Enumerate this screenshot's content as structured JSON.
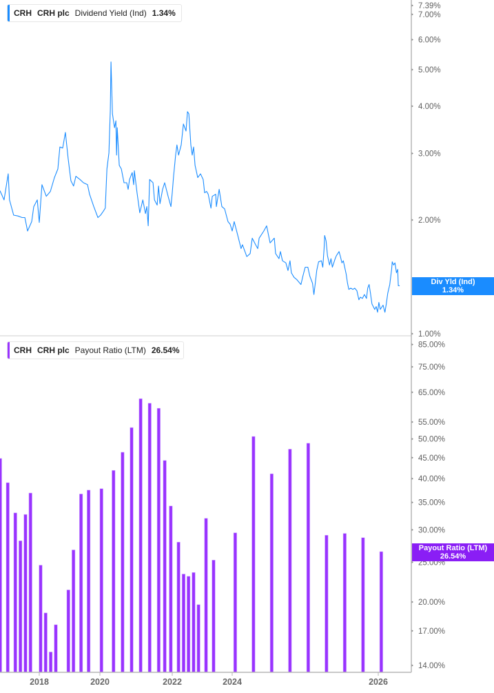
{
  "colors": {
    "dividend_yield": "#1a8cff",
    "payout_ratio": "#9933ff",
    "axis": "#b5b5b5"
  },
  "top_legend": {
    "ticker": "CRH",
    "company": "CRH plc",
    "metric": "Dividend Yield (Ind)",
    "value": "1.34%"
  },
  "bottom_legend": {
    "ticker": "CRH",
    "company": "CRH plc",
    "metric": "Payout Ratio (LTM)",
    "value": "26.54%"
  },
  "top_tag": {
    "label": "Div Yld (Ind)",
    "value": "1.34%"
  },
  "bottom_tag": {
    "label": "Payout Ratio (LTM)",
    "value": "26.54%"
  },
  "chart_data": [
    {
      "type": "line",
      "series_name": "Dividend Yield (Ind)",
      "y_scale": "log",
      "ylim": [
        1.0,
        7.39
      ],
      "y_ticks": [
        "7.39%",
        "7.00%",
        "6.00%",
        "5.00%",
        "4.00%",
        "3.00%",
        "2.00%",
        "1.00%"
      ],
      "y_tick_values": [
        7.39,
        7,
        6,
        5,
        4,
        3,
        2,
        1
      ],
      "x_ticks": [
        "2018",
        "2020",
        "2022",
        "2024",
        "2026"
      ],
      "grid": false,
      "points": [
        [
          "2016-09-15",
          2.39
        ],
        [
          "2016-11-03",
          2.26
        ],
        [
          "2016-12-22",
          2.65
        ],
        [
          "2017-01-08",
          2.26
        ],
        [
          "2017-02-27",
          2.06
        ],
        [
          "2017-04-17",
          2.05
        ],
        [
          "2017-06-07",
          2.03
        ],
        [
          "2017-07-10",
          2.03
        ],
        [
          "2017-08-12",
          1.87
        ],
        [
          "2017-10-01",
          1.98
        ],
        [
          "2017-10-26",
          2.17
        ],
        [
          "2017-12-07",
          2.26
        ],
        [
          "2018-01-01",
          1.97
        ],
        [
          "2018-02-03",
          2.48
        ],
        [
          "2018-03-25",
          2.31
        ],
        [
          "2018-05-13",
          2.38
        ],
        [
          "2018-07-01",
          2.59
        ],
        [
          "2018-08-12",
          2.73
        ],
        [
          "2018-09-06",
          3.12
        ],
        [
          "2018-10-09",
          3.1
        ],
        [
          "2018-11-11",
          3.41
        ],
        [
          "2018-12-14",
          2.91
        ],
        [
          "2019-01-17",
          2.54
        ],
        [
          "2019-02-19",
          2.46
        ],
        [
          "2019-03-16",
          2.61
        ],
        [
          "2019-05-05",
          2.56
        ],
        [
          "2019-06-16",
          2.51
        ],
        [
          "2019-08-04",
          2.48
        ],
        [
          "2019-08-29",
          2.34
        ],
        [
          "2019-10-18",
          2.17
        ],
        [
          "2019-12-07",
          2.03
        ],
        [
          "2020-01-08",
          2.06
        ],
        [
          "2020-02-05",
          2.11
        ],
        [
          "2020-02-25",
          2.15
        ],
        [
          "2020-03-11",
          2.73
        ],
        [
          "2020-04-01",
          3.01
        ],
        [
          "2020-04-15",
          3.9
        ],
        [
          "2020-04-22",
          5.24
        ],
        [
          "2020-05-06",
          3.82
        ],
        [
          "2020-05-27",
          3.51
        ],
        [
          "2020-06-10",
          3.66
        ],
        [
          "2020-06-17",
          2.97
        ],
        [
          "2020-06-24",
          3.51
        ],
        [
          "2020-07-14",
          2.79
        ],
        [
          "2020-08-04",
          2.73
        ],
        [
          "2020-09-01",
          2.51
        ],
        [
          "2020-09-28",
          2.51
        ],
        [
          "2020-10-12",
          2.41
        ],
        [
          "2020-10-26",
          2.56
        ],
        [
          "2020-11-23",
          2.67
        ],
        [
          "2020-12-07",
          2.48
        ],
        [
          "2020-12-14",
          2.7
        ],
        [
          "2021-01-11",
          2.36
        ],
        [
          "2021-02-08",
          2.09
        ],
        [
          "2021-03-08",
          2.26
        ],
        [
          "2021-04-04",
          2.08
        ],
        [
          "2021-04-18",
          2.17
        ],
        [
          "2021-05-02",
          1.93
        ],
        [
          "2021-05-16",
          2.56
        ],
        [
          "2021-06-20",
          2.51
        ],
        [
          "2021-07-04",
          2.26
        ],
        [
          "2021-08-01",
          2.19
        ],
        [
          "2021-08-15",
          2.46
        ],
        [
          "2021-08-29",
          2.21
        ],
        [
          "2021-09-25",
          2.41
        ],
        [
          "2021-10-16",
          2.51
        ],
        [
          "2021-11-20",
          2.31
        ],
        [
          "2021-12-18",
          2.17
        ],
        [
          "2022-01-01",
          2.36
        ],
        [
          "2022-01-18",
          2.62
        ],
        [
          "2022-02-12",
          2.97
        ],
        [
          "2022-02-28",
          3.16
        ],
        [
          "2022-03-17",
          2.97
        ],
        [
          "2022-04-19",
          3.16
        ],
        [
          "2022-05-15",
          3.59
        ],
        [
          "2022-06-17",
          3.44
        ],
        [
          "2022-07-04",
          3.87
        ],
        [
          "2022-07-21",
          3.82
        ],
        [
          "2022-08-15",
          3.16
        ],
        [
          "2022-09-01",
          2.97
        ],
        [
          "2022-09-18",
          3.12
        ],
        [
          "2022-10-05",
          2.79
        ],
        [
          "2022-11-07",
          2.59
        ],
        [
          "2022-12-10",
          2.65
        ],
        [
          "2023-01-13",
          2.56
        ],
        [
          "2023-01-30",
          2.36
        ],
        [
          "2023-02-24",
          2.38
        ],
        [
          "2023-03-13",
          2.34
        ],
        [
          "2023-04-16",
          2.15
        ],
        [
          "2023-05-02",
          2.31
        ],
        [
          "2023-06-13",
          2.34
        ],
        [
          "2023-06-21",
          2.17
        ],
        [
          "2023-07-25",
          2.41
        ],
        [
          "2023-08-27",
          2.17
        ],
        [
          "2023-09-30",
          2.14
        ],
        [
          "2023-11-11",
          1.98
        ],
        [
          "2023-12-06",
          1.95
        ],
        [
          "2024-01-01",
          1.87
        ],
        [
          "2024-01-11",
          1.98
        ],
        [
          "2024-01-28",
          1.83
        ],
        [
          "2024-02-15",
          1.68
        ],
        [
          "2024-02-22",
          1.72
        ],
        [
          "2024-03-13",
          1.6
        ],
        [
          "2024-03-30",
          1.63
        ],
        [
          "2024-04-10",
          1.79
        ],
        [
          "2024-04-27",
          1.72
        ],
        [
          "2024-05-07",
          1.68
        ],
        [
          "2024-05-14",
          1.79
        ],
        [
          "2024-06-07",
          1.87
        ],
        [
          "2024-06-21",
          1.93
        ],
        [
          "2024-07-08",
          1.74
        ],
        [
          "2024-07-29",
          1.79
        ],
        [
          "2024-08-05",
          1.63
        ],
        [
          "2024-08-22",
          1.58
        ],
        [
          "2024-08-29",
          1.65
        ],
        [
          "2024-09-09",
          1.56
        ],
        [
          "2024-09-26",
          1.54
        ],
        [
          "2024-10-06",
          1.47
        ],
        [
          "2024-10-16",
          1.56
        ],
        [
          "2024-10-23",
          1.45
        ],
        [
          "2024-11-06",
          1.41
        ],
        [
          "2024-11-20",
          1.39
        ],
        [
          "2024-12-10",
          1.35
        ],
        [
          "2024-12-21",
          1.43
        ],
        [
          "2025-01-01",
          1.5
        ],
        [
          "2025-01-14",
          1.5
        ],
        [
          "2025-01-24",
          1.42
        ],
        [
          "2025-02-07",
          1.36
        ],
        [
          "2025-02-14",
          1.27
        ],
        [
          "2025-02-21",
          1.36
        ],
        [
          "2025-02-28",
          1.47
        ],
        [
          "2025-03-07",
          1.55
        ],
        [
          "2025-03-21",
          1.56
        ],
        [
          "2025-03-28",
          1.5
        ],
        [
          "2025-04-04",
          1.68
        ],
        [
          "2025-04-07",
          1.82
        ],
        [
          "2025-04-14",
          1.76
        ],
        [
          "2025-04-21",
          1.61
        ],
        [
          "2025-05-01",
          1.52
        ],
        [
          "2025-05-08",
          1.58
        ],
        [
          "2025-05-15",
          1.5
        ],
        [
          "2025-05-29",
          1.58
        ],
        [
          "2025-06-05",
          1.61
        ],
        [
          "2025-06-18",
          1.65
        ],
        [
          "2025-06-25",
          1.6
        ],
        [
          "2025-07-02",
          1.54
        ],
        [
          "2025-07-09",
          1.56
        ],
        [
          "2025-07-23",
          1.44
        ],
        [
          "2025-07-30",
          1.36
        ],
        [
          "2025-08-06",
          1.31
        ],
        [
          "2025-08-16",
          1.32
        ],
        [
          "2025-08-26",
          1.31
        ],
        [
          "2025-09-05",
          1.32
        ],
        [
          "2025-09-16",
          1.3
        ],
        [
          "2025-09-26",
          1.23
        ],
        [
          "2025-10-03",
          1.25
        ],
        [
          "2025-10-13",
          1.24
        ],
        [
          "2025-10-23",
          1.27
        ],
        [
          "2025-11-03",
          1.24
        ],
        [
          "2025-11-09",
          1.32
        ],
        [
          "2025-11-16",
          1.35
        ],
        [
          "2025-11-23",
          1.28
        ],
        [
          "2025-11-30",
          1.2
        ],
        [
          "2025-12-14",
          1.16
        ],
        [
          "2025-12-21",
          1.18
        ],
        [
          "2025-12-28",
          1.14
        ],
        [
          "2026-01-04",
          1.21
        ],
        [
          "2026-01-11",
          1.16
        ],
        [
          "2026-01-25",
          1.19
        ],
        [
          "2026-02-04",
          1.14
        ],
        [
          "2026-02-11",
          1.2
        ],
        [
          "2026-02-18",
          1.28
        ],
        [
          "2026-02-28",
          1.35
        ],
        [
          "2026-03-07",
          1.48
        ],
        [
          "2026-03-10",
          1.55
        ],
        [
          "2026-03-17",
          1.52
        ],
        [
          "2026-03-24",
          1.54
        ],
        [
          "2026-03-31",
          1.45
        ],
        [
          "2026-04-07",
          1.48
        ],
        [
          "2026-04-10",
          1.34
        ],
        [
          "2026-04-17",
          1.34
        ]
      ]
    },
    {
      "type": "bar",
      "series_name": "Payout Ratio (LTM)",
      "y_scale": "log",
      "ylim": [
        13.5,
        85
      ],
      "y_ticks": [
        "85.00%",
        "75.00%",
        "65.00%",
        "55.00%",
        "50.00%",
        "45.00%",
        "40.00%",
        "35.00%",
        "30.00%",
        "25.00%",
        "20.00%",
        "17.00%",
        "14.00%"
      ],
      "y_tick_values": [
        85,
        75,
        65,
        55,
        50,
        45,
        40,
        35,
        30,
        25,
        20,
        17,
        14
      ],
      "x_ticks": [
        "2018",
        "2020",
        "2022",
        "2024",
        "2026"
      ],
      "grid": false,
      "bars": [
        [
          "2016-09",
          44.8
        ],
        [
          "2016-12",
          39.1
        ],
        [
          "2017-03",
          33.0
        ],
        [
          "2017-05",
          28.2
        ],
        [
          "2017-07",
          32.7
        ],
        [
          "2017-09",
          36.9
        ],
        [
          "2018-01",
          24.6
        ],
        [
          "2018-03",
          18.8
        ],
        [
          "2018-05",
          15.1
        ],
        [
          "2018-07",
          17.6
        ],
        [
          "2018-12",
          21.4
        ],
        [
          "2019-02",
          26.8
        ],
        [
          "2019-05",
          36.7
        ],
        [
          "2019-08",
          37.5
        ],
        [
          "2020-01",
          37.8
        ],
        [
          "2020-05",
          41.9
        ],
        [
          "2020-08",
          46.4
        ],
        [
          "2020-11",
          53.3
        ],
        [
          "2021-02",
          62.7
        ],
        [
          "2021-05",
          61.1
        ],
        [
          "2021-08",
          59.4
        ],
        [
          "2021-10",
          44.3
        ],
        [
          "2021-12",
          34.3
        ],
        [
          "2022-03",
          28.0
        ],
        [
          "2022-05",
          23.4
        ],
        [
          "2022-07",
          23.1
        ],
        [
          "2022-09",
          23.6
        ],
        [
          "2022-11",
          19.7
        ],
        [
          "2023-02",
          32.0
        ],
        [
          "2023-05",
          25.3
        ],
        [
          "2024-01",
          29.5
        ],
        [
          "2024-04",
          50.7
        ],
        [
          "2024-07",
          41.1
        ],
        [
          "2024-10",
          47.2
        ],
        [
          "2025-01",
          48.8
        ],
        [
          "2025-04",
          29.1
        ],
        [
          "2025-07",
          29.4
        ],
        [
          "2025-10",
          28.7
        ],
        [
          "2026-01",
          26.54
        ]
      ]
    }
  ]
}
